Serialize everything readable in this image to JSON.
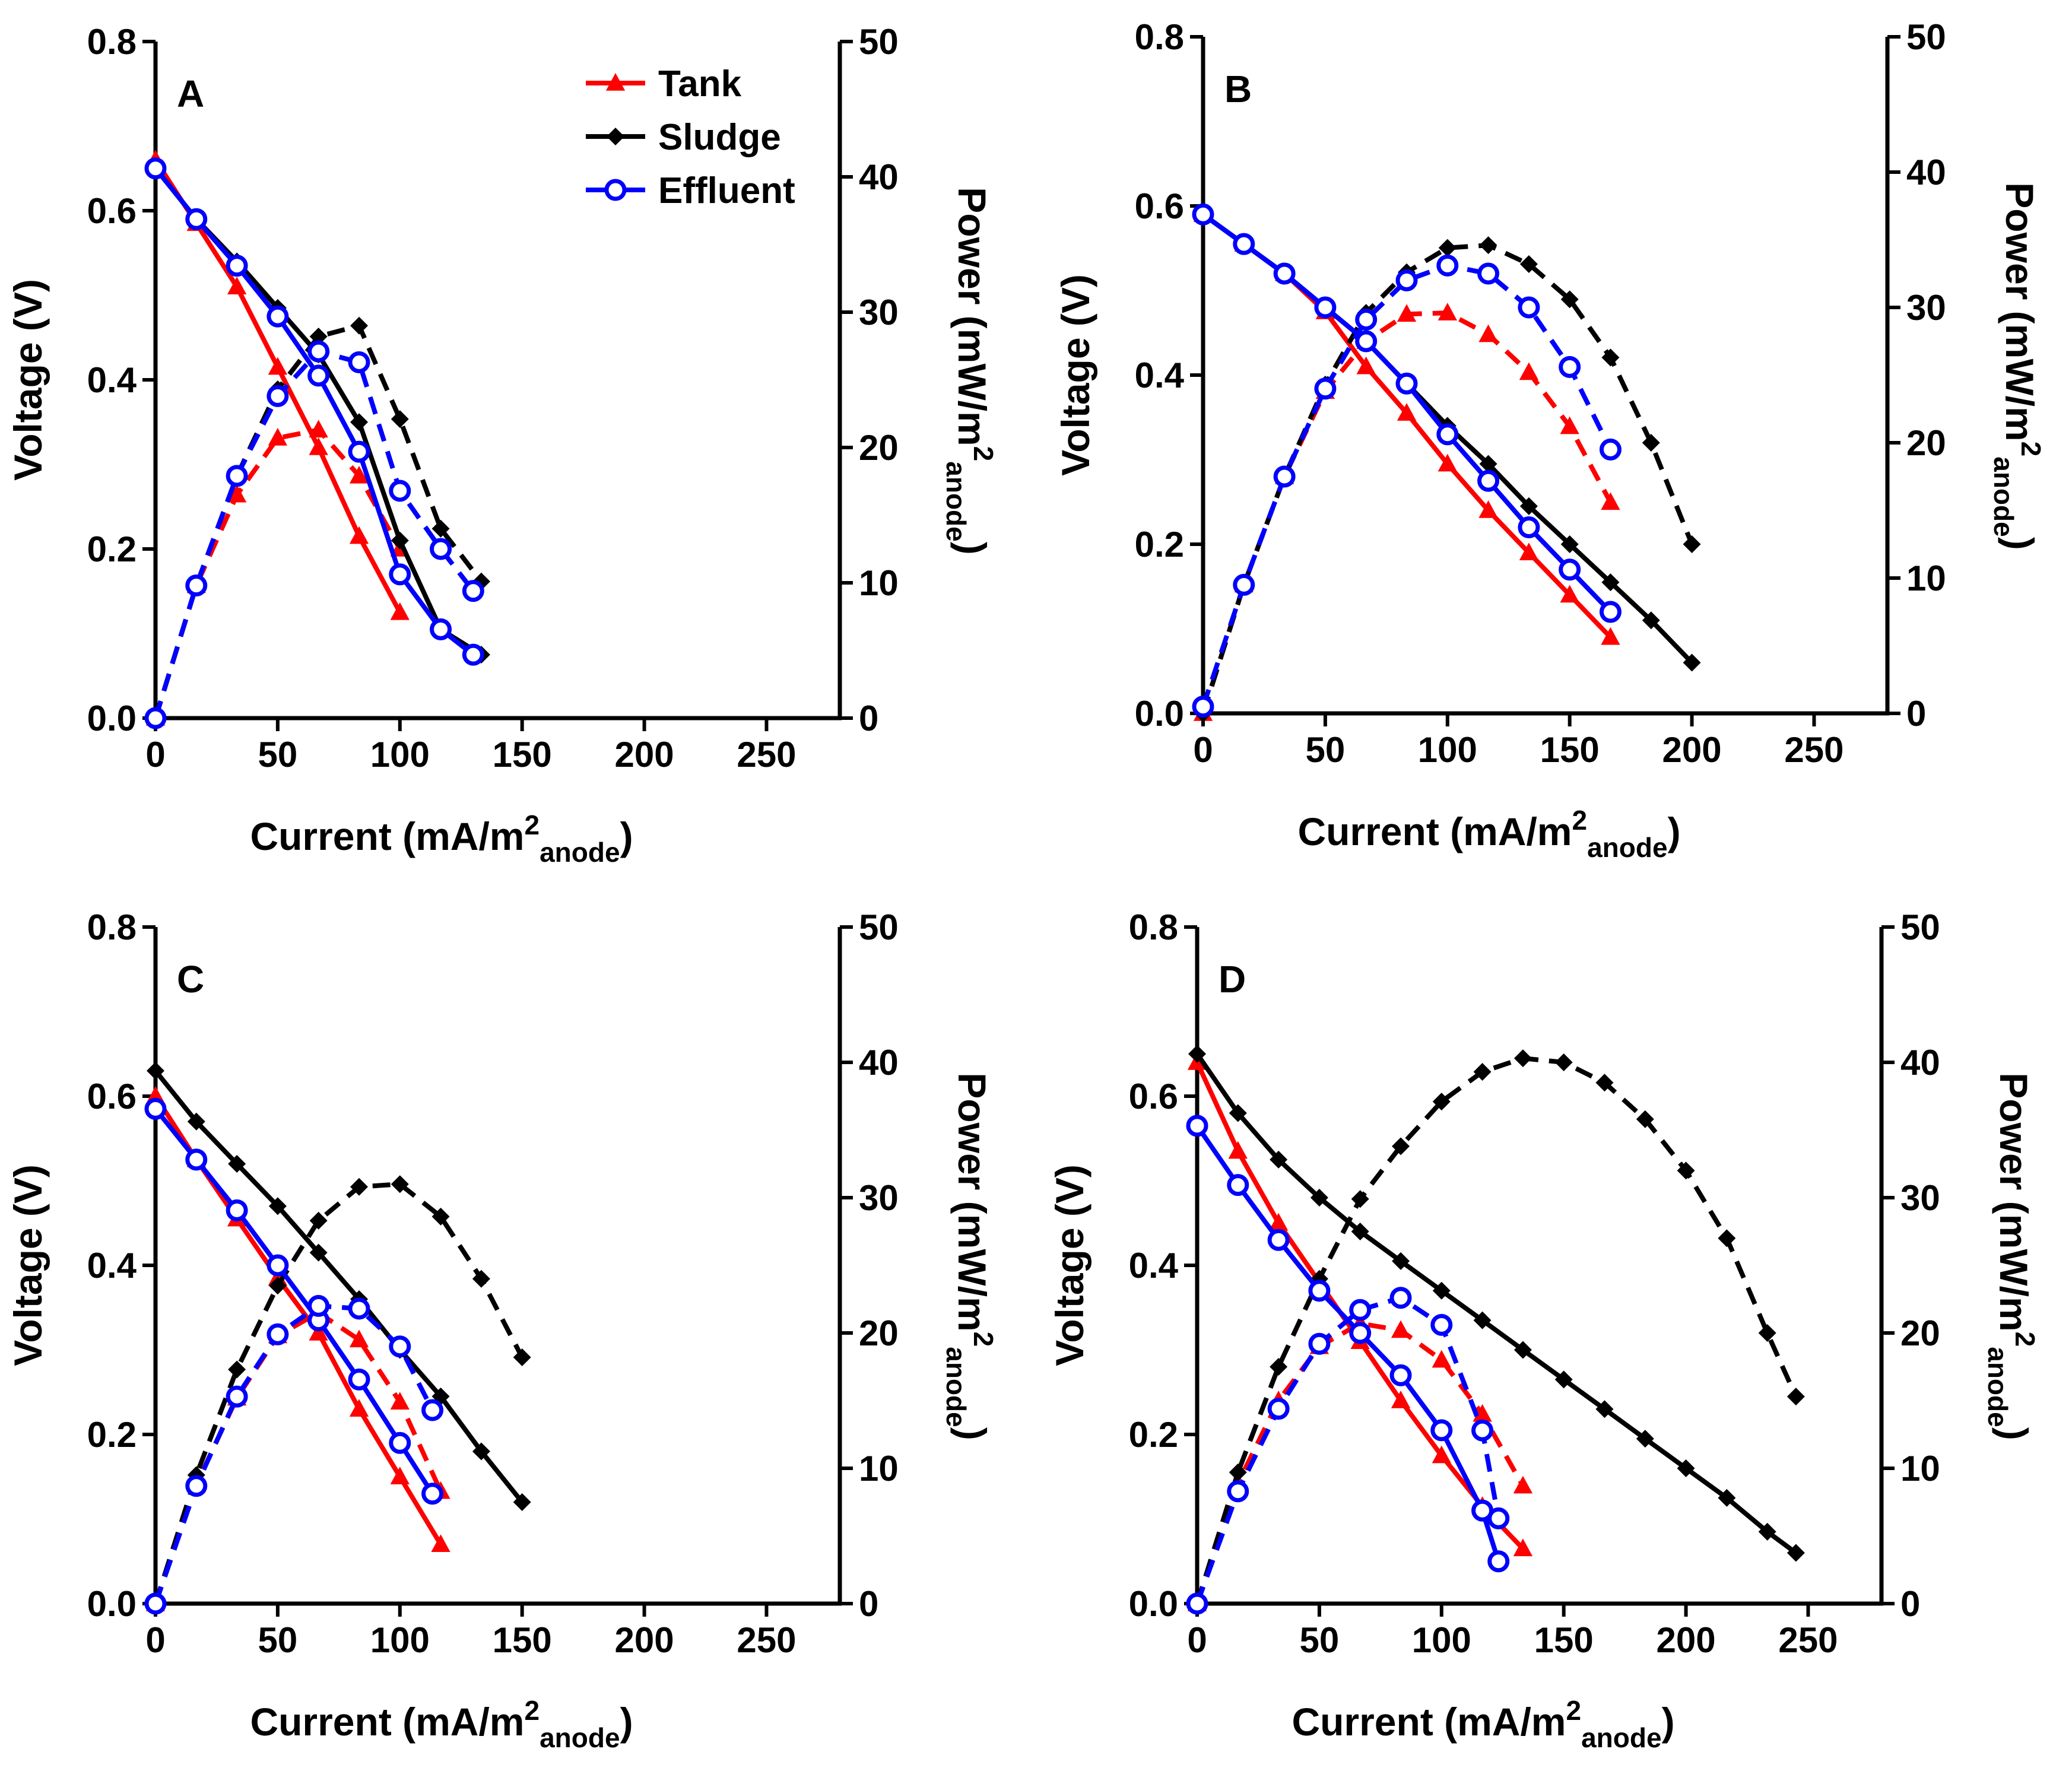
{
  "chart_data": {
    "type": "line",
    "legend": {
      "location": "top-right of panel A",
      "entries": [
        {
          "name": "Tank",
          "color": "#ff0000",
          "marker": "triangle"
        },
        {
          "name": "Sludge",
          "color": "#000000",
          "marker": "diamond"
        },
        {
          "name": "Effluent",
          "color": "#0000ff",
          "marker": "circle"
        }
      ]
    },
    "axes": {
      "x": {
        "label_main": "Current (mA/m",
        "label_sup": "2",
        "label_sub": "anode",
        "label_end": ")",
        "range": [
          0,
          280
        ],
        "ticks": [
          0,
          50,
          100,
          150,
          200,
          250
        ]
      },
      "y_left": {
        "label": "Voltage (V)",
        "range": [
          0,
          0.8
        ],
        "ticks": [
          0.0,
          0.2,
          0.4,
          0.6,
          0.8
        ],
        "tick_labels": [
          "0.0",
          "0.2",
          "0.4",
          "0.6",
          "0.8"
        ]
      },
      "y_right": {
        "label_main": "Power (mW/m",
        "label_sup": "2",
        "label_sub": "anode",
        "label_end": ")",
        "range": [
          0,
          50
        ],
        "ticks": [
          0,
          10,
          20,
          30,
          40,
          50
        ]
      }
    },
    "panels": [
      {
        "label": "A",
        "series": [
          {
            "name": "Tank",
            "kind": "voltage",
            "x": [
              0,
              16.7,
              33.3,
              50,
              66.7,
              83.3,
              100
            ],
            "y": [
              0.66,
              0.585,
              0.51,
              0.415,
              0.32,
              0.215,
              0.125
            ]
          },
          {
            "name": "Tank",
            "kind": "power",
            "x": [
              0,
              16.7,
              33.3,
              50,
              66.7,
              83.3,
              100
            ],
            "y": [
              0,
              9.8,
              16.5,
              20.7,
              21.3,
              17.9,
              12.5
            ]
          },
          {
            "name": "Sludge",
            "kind": "voltage",
            "x": [
              0,
              16.7,
              33.3,
              50,
              66.7,
              83.3,
              100,
              116.7,
              133.3
            ],
            "y": [
              0.65,
              0.59,
              0.54,
              0.485,
              0.43,
              0.35,
              0.21,
              0.105,
              0.075
            ]
          },
          {
            "name": "Sludge",
            "kind": "power",
            "x": [
              0,
              16.7,
              33.3,
              50,
              66.7,
              83.3,
              100,
              116.7,
              133.3
            ],
            "y": [
              0,
              9.8,
              17.9,
              24.3,
              28.2,
              29.0,
              22.1,
              14.0,
              10.1
            ]
          },
          {
            "name": "Effluent",
            "kind": "voltage",
            "x": [
              0,
              16.7,
              33.3,
              50,
              66.7,
              83.3,
              100,
              116.7,
              130
            ],
            "y": [
              0.65,
              0.59,
              0.535,
              0.475,
              0.405,
              0.315,
              0.17,
              0.105,
              0.075
            ]
          },
          {
            "name": "Effluent",
            "kind": "power",
            "x": [
              0,
              16.7,
              33.3,
              50,
              66.7,
              83.3,
              100,
              116.7,
              130
            ],
            "y": [
              0,
              9.8,
              17.9,
              23.8,
              27.1,
              26.3,
              16.8,
              12.5,
              9.4
            ]
          }
        ]
      },
      {
        "label": "B",
        "series": [
          {
            "name": "Tank",
            "kind": "voltage",
            "x": [
              0,
              16.7,
              33.3,
              50,
              66.7,
              83.3,
              100,
              116.7,
              133.3,
              150,
              166.7
            ],
            "y": [
              0.59,
              0.555,
              0.52,
              0.475,
              0.41,
              0.355,
              0.295,
              0.24,
              0.19,
              0.14,
              0.09
            ]
          },
          {
            "name": "Tank",
            "kind": "power",
            "x": [
              0,
              16.7,
              33.3,
              50,
              66.7,
              83.3,
              100,
              116.7,
              133.3,
              150,
              166.7
            ],
            "y": [
              0,
              9.5,
              17.5,
              23.8,
              27.5,
              29.5,
              29.6,
              28.0,
              25.2,
              21.2,
              15.6
            ]
          },
          {
            "name": "Sludge",
            "kind": "voltage",
            "x": [
              0,
              16.7,
              33.3,
              50,
              66.7,
              83.3,
              100,
              116.7,
              133.3,
              150,
              166.7,
              183.3,
              200
            ],
            "y": [
              0.59,
              0.555,
              0.52,
              0.48,
              0.44,
              0.39,
              0.34,
              0.295,
              0.245,
              0.2,
              0.155,
              0.11,
              0.06
            ]
          },
          {
            "name": "Sludge",
            "kind": "power",
            "x": [
              0,
              16.7,
              33.3,
              50,
              66.7,
              83.3,
              100,
              116.7,
              133.3,
              150,
              166.7,
              183.3,
              200
            ],
            "y": [
              0,
              9.5,
              17.5,
              24.3,
              29.6,
              32.6,
              34.4,
              34.6,
              33.2,
              30.6,
              26.3,
              20.0,
              12.5
            ]
          },
          {
            "name": "Effluent",
            "kind": "voltage",
            "x": [
              0,
              16.7,
              33.3,
              50,
              66.7,
              83.3,
              100,
              116.7,
              133.3,
              150,
              166.7
            ],
            "y": [
              0.59,
              0.555,
              0.52,
              0.48,
              0.44,
              0.39,
              0.33,
              0.275,
              0.22,
              0.17,
              0.12
            ]
          },
          {
            "name": "Effluent",
            "kind": "power",
            "x": [
              0,
              16.7,
              33.3,
              50,
              66.7,
              83.3,
              100,
              116.7,
              133.3,
              150,
              166.7
            ],
            "y": [
              0.5,
              9.5,
              17.5,
              24.0,
              29.1,
              32.0,
              33.1,
              32.5,
              30.0,
              25.6,
              19.5
            ]
          }
        ]
      },
      {
        "label": "C",
        "series": [
          {
            "name": "Tank",
            "kind": "voltage",
            "x": [
              0,
              16.7,
              33.3,
              50,
              66.7,
              83.3,
              100,
              116.7
            ],
            "y": [
              0.6,
              0.525,
              0.455,
              0.385,
              0.32,
              0.23,
              0.15,
              0.07
            ]
          },
          {
            "name": "Tank",
            "kind": "power",
            "x": [
              0,
              16.7,
              33.3,
              50,
              66.7,
              83.3,
              100,
              116.7
            ],
            "y": [
              0,
              8.8,
              15.2,
              19.8,
              21.5,
              19.5,
              14.9,
              8.3
            ]
          },
          {
            "name": "Sludge",
            "kind": "voltage",
            "x": [
              0,
              16.7,
              33.3,
              50,
              66.7,
              83.3,
              100,
              116.7,
              133.3,
              150
            ],
            "y": [
              0.63,
              0.57,
              0.52,
              0.47,
              0.415,
              0.36,
              0.3,
              0.245,
              0.18,
              0.12
            ]
          },
          {
            "name": "Sludge",
            "kind": "power",
            "x": [
              0,
              16.7,
              33.3,
              50,
              66.7,
              83.3,
              100,
              116.7,
              133.3,
              150
            ],
            "y": [
              0,
              9.5,
              17.3,
              23.5,
              28.3,
              30.8,
              31.0,
              28.6,
              24.0,
              18.2
            ]
          },
          {
            "name": "Effluent",
            "kind": "voltage",
            "x": [
              0,
              16.7,
              33.3,
              50,
              66.7,
              83.3,
              100,
              113.3
            ],
            "y": [
              0.585,
              0.525,
              0.465,
              0.4,
              0.335,
              0.265,
              0.19,
              0.13
            ]
          },
          {
            "name": "Effluent",
            "kind": "power",
            "x": [
              0,
              16.7,
              33.3,
              50,
              66.7,
              83.3,
              100,
              113.3
            ],
            "y": [
              0,
              8.7,
              15.3,
              19.9,
              22.0,
              21.8,
              19.0,
              14.3
            ]
          }
        ]
      },
      {
        "label": "D",
        "series": [
          {
            "name": "Tank",
            "kind": "voltage",
            "x": [
              0,
              16.7,
              33.3,
              50,
              66.7,
              83.3,
              100,
              116.7,
              133.3
            ],
            "y": [
              0.64,
              0.535,
              0.45,
              0.38,
              0.31,
              0.24,
              0.175,
              0.115,
              0.065
            ]
          },
          {
            "name": "Tank",
            "kind": "power",
            "x": [
              0,
              16.7,
              33.3,
              50,
              66.7,
              83.3,
              100,
              116.7,
              133.3
            ],
            "y": [
              0,
              8.9,
              15.0,
              19.0,
              20.7,
              20.2,
              18.0,
              14.0,
              8.7
            ]
          },
          {
            "name": "Sludge",
            "kind": "voltage",
            "x": [
              0,
              16.7,
              33.3,
              50,
              66.7,
              83.3,
              100,
              116.7,
              133.3,
              150,
              166.7,
              183.3,
              200,
              216.7,
              233.3,
              245
            ],
            "y": [
              0.65,
              0.58,
              0.525,
              0.48,
              0.44,
              0.405,
              0.37,
              0.335,
              0.3,
              0.265,
              0.23,
              0.195,
              0.16,
              0.125,
              0.085,
              0.06
            ]
          },
          {
            "name": "Sludge",
            "kind": "power",
            "x": [
              0,
              16.7,
              33.3,
              50,
              66.7,
              83.3,
              100,
              116.7,
              133.3,
              150,
              166.7,
              183.3,
              200,
              216.7,
              233.3,
              245
            ],
            "y": [
              0,
              9.7,
              17.5,
              24.0,
              29.9,
              33.8,
              37.1,
              39.3,
              40.3,
              40.0,
              38.5,
              35.8,
              32.0,
              27.0,
              20.0,
              15.3
            ]
          },
          {
            "name": "Effluent",
            "kind": "voltage",
            "x": [
              0,
              16.7,
              33.3,
              50,
              66.7,
              83.3,
              100,
              116.7,
              123.3
            ],
            "y": [
              0.565,
              0.495,
              0.43,
              0.37,
              0.32,
              0.27,
              0.205,
              0.11,
              0.05
            ]
          },
          {
            "name": "Effluent",
            "kind": "power",
            "x": [
              0,
              16.7,
              33.3,
              50,
              66.7,
              83.3,
              100,
              116.7,
              123.3
            ],
            "y": [
              0,
              8.3,
              14.4,
              19.2,
              21.7,
              22.6,
              20.6,
              12.8,
              6.3
            ]
          }
        ]
      }
    ]
  }
}
